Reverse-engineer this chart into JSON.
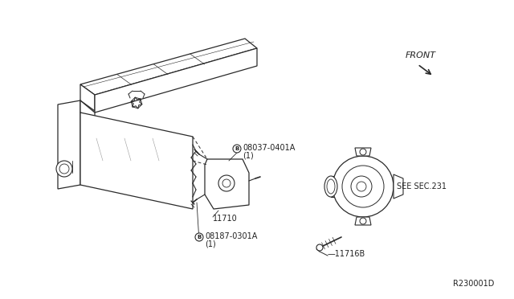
{
  "bg_color": "#ffffff",
  "line_color": "#2a2a2a",
  "text_color": "#222222",
  "ref_code": "R230001D",
  "labels": {
    "front": "FRONT",
    "part1_a": "B",
    "part1_b": "08037-0401A",
    "part1_c": "(1)",
    "part2": "11710",
    "part3_a": "B",
    "part3_b": "08187-0301A",
    "part3_c": "(1)",
    "part4": "11716B",
    "see": "SEE SEC.231"
  },
  "font_size_label": 7,
  "font_size_ref": 7,
  "font_size_front": 8
}
